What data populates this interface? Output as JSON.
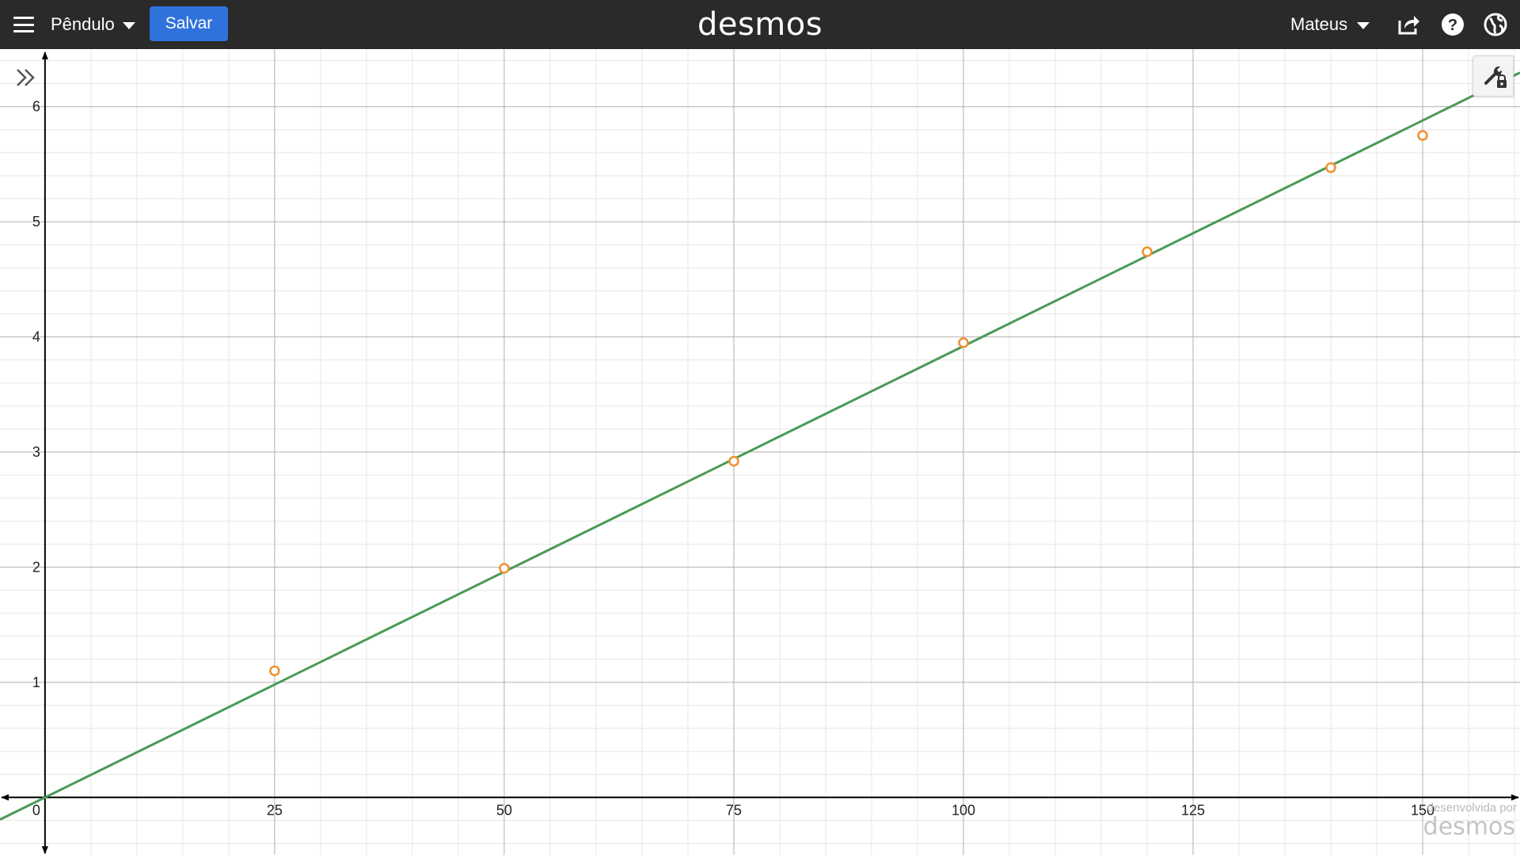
{
  "header": {
    "graph_title": "Pêndulo",
    "save_label": "Salvar",
    "logo_text": "desmos",
    "user_name": "Mateus"
  },
  "colors": {
    "topbar": "#2a2a2a",
    "save_button": "#2f72dc",
    "regression_line": "#4a9a55",
    "data_points": "#f0902f",
    "axis": "#000000"
  },
  "icons": {
    "menu": "hamburger-icon",
    "expand": "double-chevron-right-icon",
    "share": "share-icon",
    "help": "help-icon",
    "language": "globe-icon",
    "settings": "wrench-lock-icon"
  },
  "watermark": {
    "prefix": "desenvolvida por",
    "logo": "desmos"
  },
  "chart_data": {
    "type": "scatter",
    "x": [
      25,
      50,
      75,
      100,
      120,
      140,
      150
    ],
    "y": [
      1.1,
      1.99,
      2.92,
      3.95,
      4.74,
      5.47,
      5.75
    ],
    "fit_line": {
      "slope": 0.0392,
      "intercept": 0
    },
    "xlim": [
      -4.9,
      160.6
    ],
    "ylim": [
      -0.5,
      6.5
    ],
    "x_ticks": [
      "25",
      "50",
      "75",
      "100",
      "125",
      "150"
    ],
    "y_ticks": [
      "1",
      "2",
      "3",
      "4",
      "5",
      "6"
    ],
    "origin_label": "0",
    "grid": true,
    "title": "",
    "xlabel": "",
    "ylabel": ""
  }
}
